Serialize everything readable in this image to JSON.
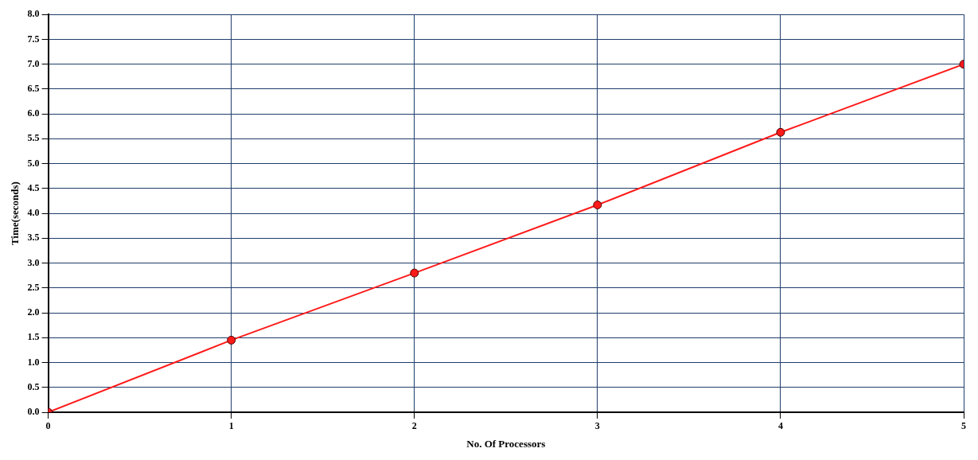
{
  "chart_data": {
    "type": "line",
    "xlabel": "No. Of Processors",
    "ylabel": "Time(seconds)",
    "x": [
      0,
      1,
      2,
      3,
      4,
      5
    ],
    "series": [
      {
        "color": "#ff1a1a",
        "values": [
          0,
          1.45,
          2.8,
          4.17,
          5.63,
          7.0
        ]
      }
    ],
    "xlim": [
      0,
      5
    ],
    "xticks": [
      0,
      1,
      2,
      3,
      4,
      5
    ],
    "ylim": [
      0,
      8
    ],
    "yticks": [
      {
        "value": 0,
        "label": "0.0"
      },
      {
        "value": 0.5,
        "label": "0.5"
      },
      {
        "value": 1,
        "label": "1.0"
      },
      {
        "value": 1.5,
        "label": "1.5"
      },
      {
        "value": 2,
        "label": "2.0"
      },
      {
        "value": 2.5,
        "label": "2.5"
      },
      {
        "value": 3,
        "label": "3.0"
      },
      {
        "value": 3.5,
        "label": "3.5"
      },
      {
        "value": 4,
        "label": "4.0"
      },
      {
        "value": 4.5,
        "label": "4.5"
      },
      {
        "value": 5,
        "label": "5.0"
      },
      {
        "value": 5.5,
        "label": "5.5"
      },
      {
        "value": 6,
        "label": "6.0"
      },
      {
        "value": 6.5,
        "label": "6.5"
      },
      {
        "value": 7,
        "label": "7.0"
      },
      {
        "value": 7.5,
        "label": "7.5"
      },
      {
        "value": 8,
        "label": "8.0"
      }
    ],
    "grid": true,
    "legend": false,
    "marker": "circle",
    "line_style": "solid"
  }
}
